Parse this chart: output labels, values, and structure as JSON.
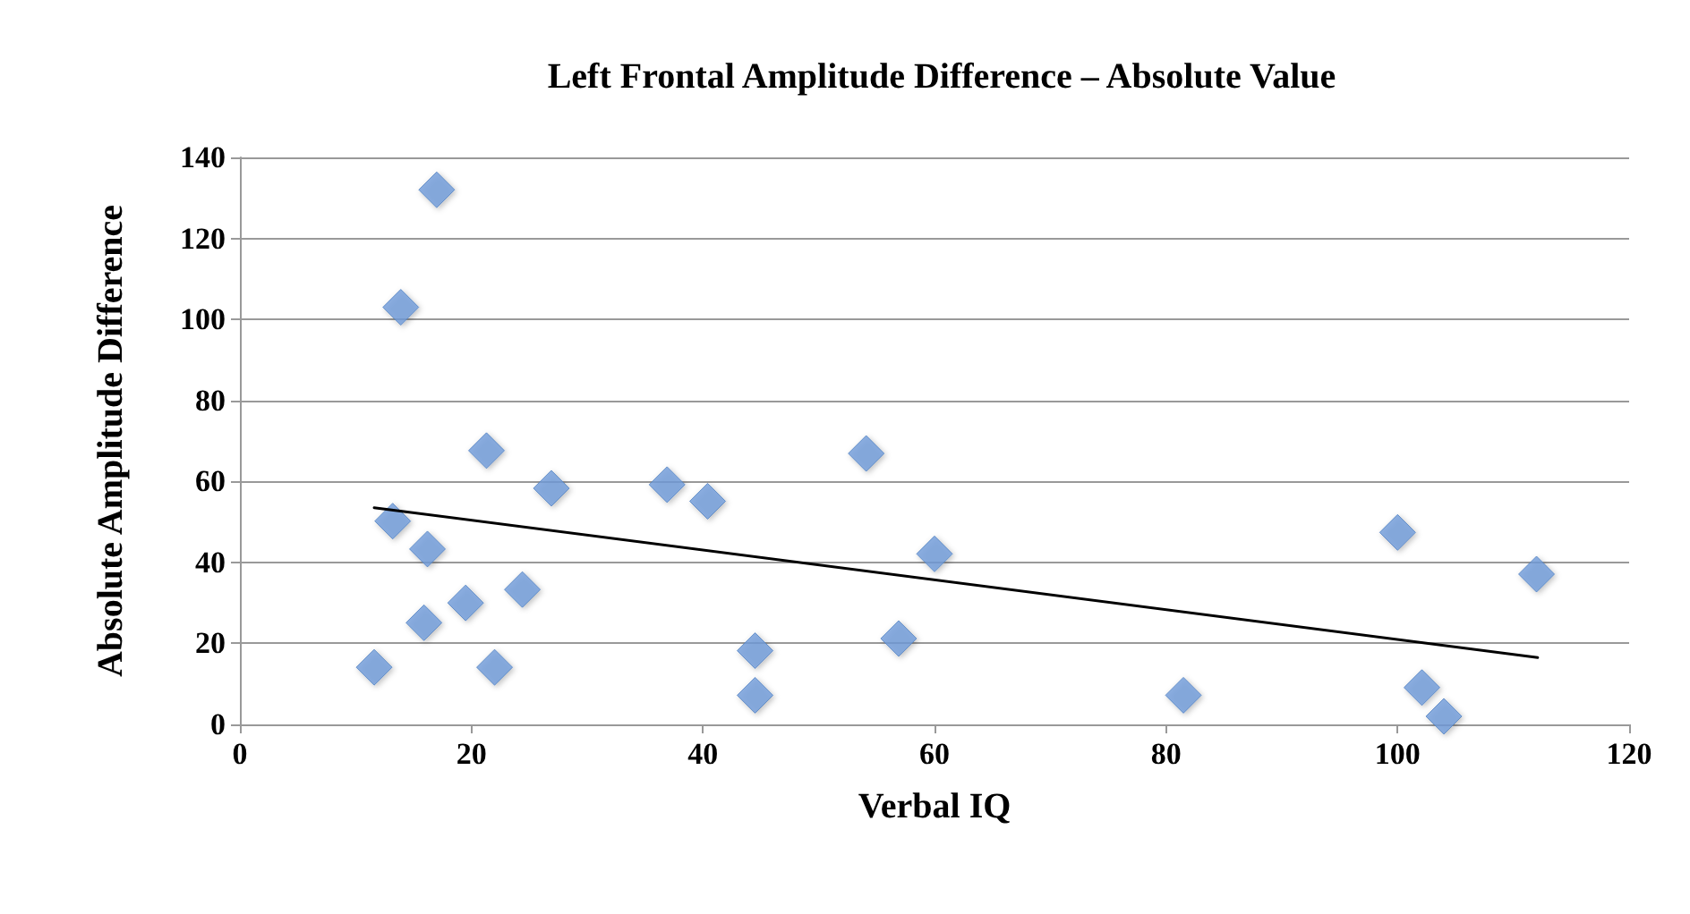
{
  "chart_data": {
    "type": "scatter",
    "title": "Left Frontal Amplitude Difference – Absolute Value",
    "xlabel": "Verbal IQ",
    "ylabel": "Absolute Amplitude Difference",
    "xlim": [
      0,
      120
    ],
    "xticks": [
      0,
      20,
      40,
      60,
      80,
      100,
      120
    ],
    "ylim": [
      0,
      140
    ],
    "yticks": [
      0,
      20,
      40,
      60,
      80,
      100,
      120,
      140
    ],
    "grid": "y",
    "series": [
      {
        "color": "#6f9bd9",
        "marker": "diamond",
        "x": [
          13.9,
          17,
          21.3,
          26.9,
          36.9,
          40.4,
          13.2,
          16.2,
          24.4,
          19.5,
          15.9,
          11.6,
          22,
          44.5,
          44.5,
          54.1,
          60,
          56.9,
          81.5,
          100,
          112,
          102.1,
          104
        ],
        "values": [
          103,
          132,
          67.6,
          58.3,
          59.2,
          55.1,
          50.2,
          43.3,
          33.3,
          30,
          25.1,
          14.1,
          14.1,
          18.2,
          7.2,
          66.9,
          42.1,
          21.2,
          7.2,
          47.4,
          37.1,
          9.1,
          2
        ]
      },
      {
        "type": "line",
        "color": "#000000",
        "marker": "none",
        "line_style": "solid",
        "x": [
          11.6,
          112.1
        ],
        "values": [
          53.5,
          16.5
        ]
      }
    ]
  }
}
